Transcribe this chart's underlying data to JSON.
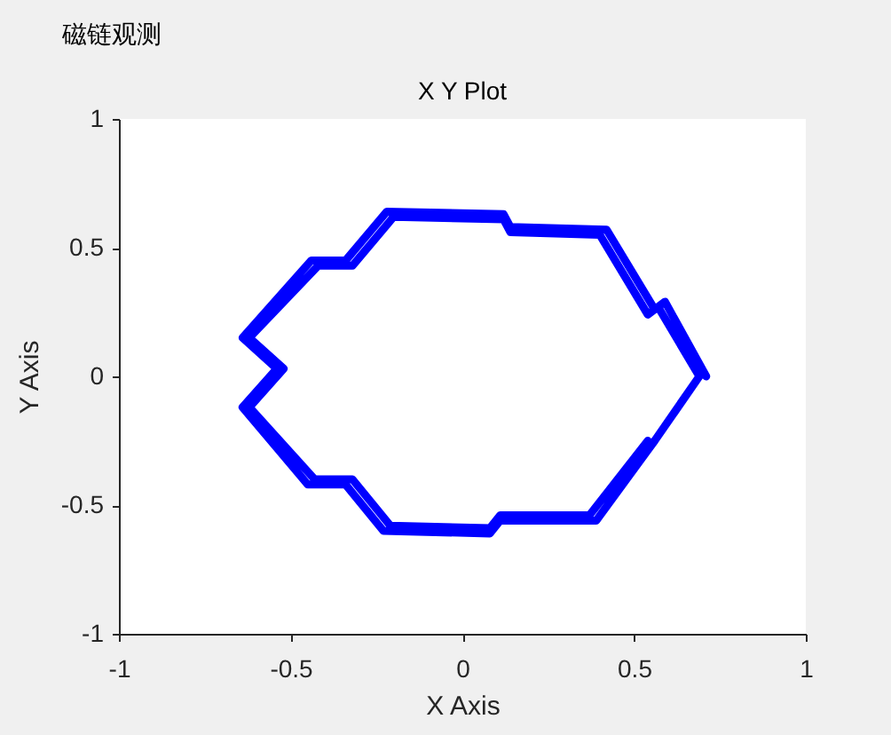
{
  "chart_data": {
    "type": "line",
    "title": "X Y Plot",
    "xlabel": "X Axis",
    "ylabel": "Y Axis",
    "annotations": [
      "磁链观测"
    ],
    "x": [
      0.71,
      0.59,
      0.56,
      0.42,
      0.14,
      0.12,
      -0.22,
      -0.34,
      -0.44,
      -0.64,
      -0.54,
      -0.64,
      -0.45,
      -0.34,
      -0.23,
      0.08,
      0.11,
      0.39,
      0.56,
      0.69,
      0.57,
      0.54,
      0.4,
      0.14,
      0.12,
      -0.2,
      -0.32,
      -0.42,
      -0.62,
      -0.52,
      -0.62,
      -0.43,
      -0.32,
      -0.21,
      0.08,
      0.11,
      0.37,
      0.54
    ],
    "series": [
      {
        "color": "#0000ff",
        "values": [
          0.0,
          0.29,
          0.26,
          0.57,
          0.58,
          0.63,
          0.64,
          0.45,
          0.45,
          0.15,
          0.03,
          -0.12,
          -0.42,
          -0.42,
          -0.6,
          -0.61,
          -0.56,
          -0.56,
          -0.25,
          0.0,
          0.27,
          0.24,
          0.55,
          0.56,
          0.61,
          0.62,
          0.43,
          0.43,
          0.15,
          0.03,
          -0.12,
          -0.4,
          -0.4,
          -0.58,
          -0.59,
          -0.54,
          -0.54,
          -0.25
        ]
      }
    ],
    "xlim": [
      -1,
      1
    ],
    "ylim": [
      -1,
      1
    ],
    "xticks": [
      -1,
      -0.5,
      0,
      0.5,
      1
    ],
    "yticks": [
      -1,
      -0.5,
      0,
      0.5,
      1
    ],
    "grid": false,
    "marker": "none",
    "line_style": "solid"
  }
}
